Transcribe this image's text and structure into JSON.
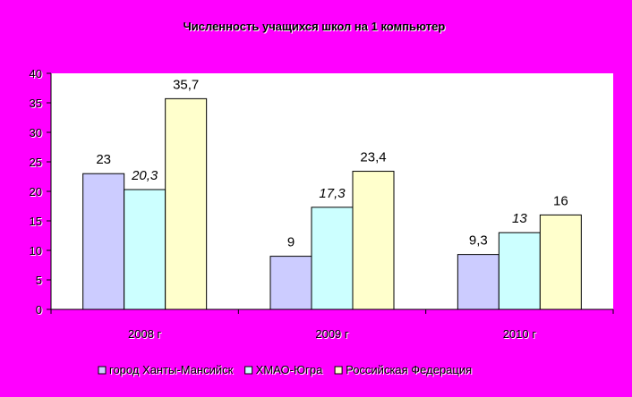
{
  "colors": {
    "background": "#ff00ff",
    "plot_area": "#ffffff",
    "series": [
      "#ccccff",
      "#ccffff",
      "#ffffcc"
    ],
    "text": "#000000"
  },
  "chart_data": {
    "type": "bar",
    "title": "Численность учащихся школ на 1 компьютер",
    "xlabel": "",
    "ylabel": "",
    "categories": [
      "2008 г",
      "2009 г",
      "2010 г"
    ],
    "ylim": [
      0,
      40
    ],
    "yticks": [
      "0",
      "5",
      "10",
      "15",
      "20",
      "25",
      "30",
      "35",
      "40"
    ],
    "grid": false,
    "legend_position": "bottom",
    "series": [
      {
        "name": "город Ханты-Мансийск",
        "values": [
          23,
          9,
          9.3
        ],
        "labels": [
          "23",
          "9",
          "9,3"
        ],
        "label_style": "normal"
      },
      {
        "name": "ХМАО-Югра",
        "values": [
          20.3,
          17.3,
          13
        ],
        "labels": [
          "20,3",
          "17,3",
          "13"
        ],
        "label_style": "italic"
      },
      {
        "name": "Российская Федерация",
        "values": [
          35.7,
          23.4,
          16
        ],
        "labels": [
          "35,7",
          "23,4",
          "16"
        ],
        "label_style": "normal"
      }
    ]
  }
}
